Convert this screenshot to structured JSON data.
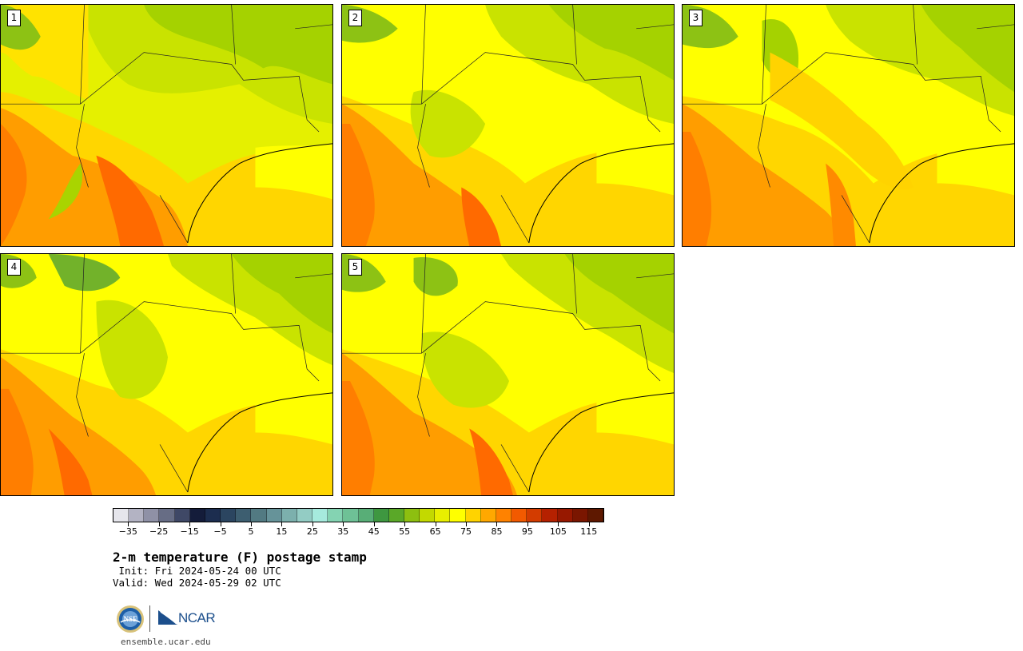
{
  "panels": [
    {
      "label": "1"
    },
    {
      "label": "2"
    },
    {
      "label": "3"
    },
    {
      "label": "4"
    },
    {
      "label": "5"
    }
  ],
  "colorbar": {
    "colors": [
      "#e6e6ec",
      "#b3b3c3",
      "#8f91a6",
      "#676d85",
      "#3f4866",
      "#141c3a",
      "#1c2d4f",
      "#2b4560",
      "#3d5e70",
      "#527a82",
      "#669399",
      "#7cb0ad",
      "#93ccc4",
      "#a6eadd",
      "#84d3b2",
      "#6ec196",
      "#58ae77",
      "#3e9740",
      "#5aa828",
      "#8dbf10",
      "#c3d900",
      "#e8ef00",
      "#ffff00",
      "#ffd300",
      "#ffa800",
      "#ff8200",
      "#f25a00",
      "#d33c00",
      "#b52100",
      "#971800",
      "#7a1600",
      "#5e1800"
    ],
    "tick_labels": [
      "−35",
      "−25",
      "−15",
      "−5",
      "5",
      "15",
      "25",
      "35",
      "45",
      "55",
      "65",
      "75",
      "85",
      "95",
      "105",
      "115"
    ]
  },
  "title": "2-m temperature (F) postage stamp",
  "init_line": " Init: Fri 2024-05-24 00 UTC",
  "valid_line": "Valid: Wed 2024-05-29 02 UTC",
  "logos": {
    "nsf": "NSF",
    "ncar": "NCAR"
  },
  "url": "ensemble.ucar.edu"
}
